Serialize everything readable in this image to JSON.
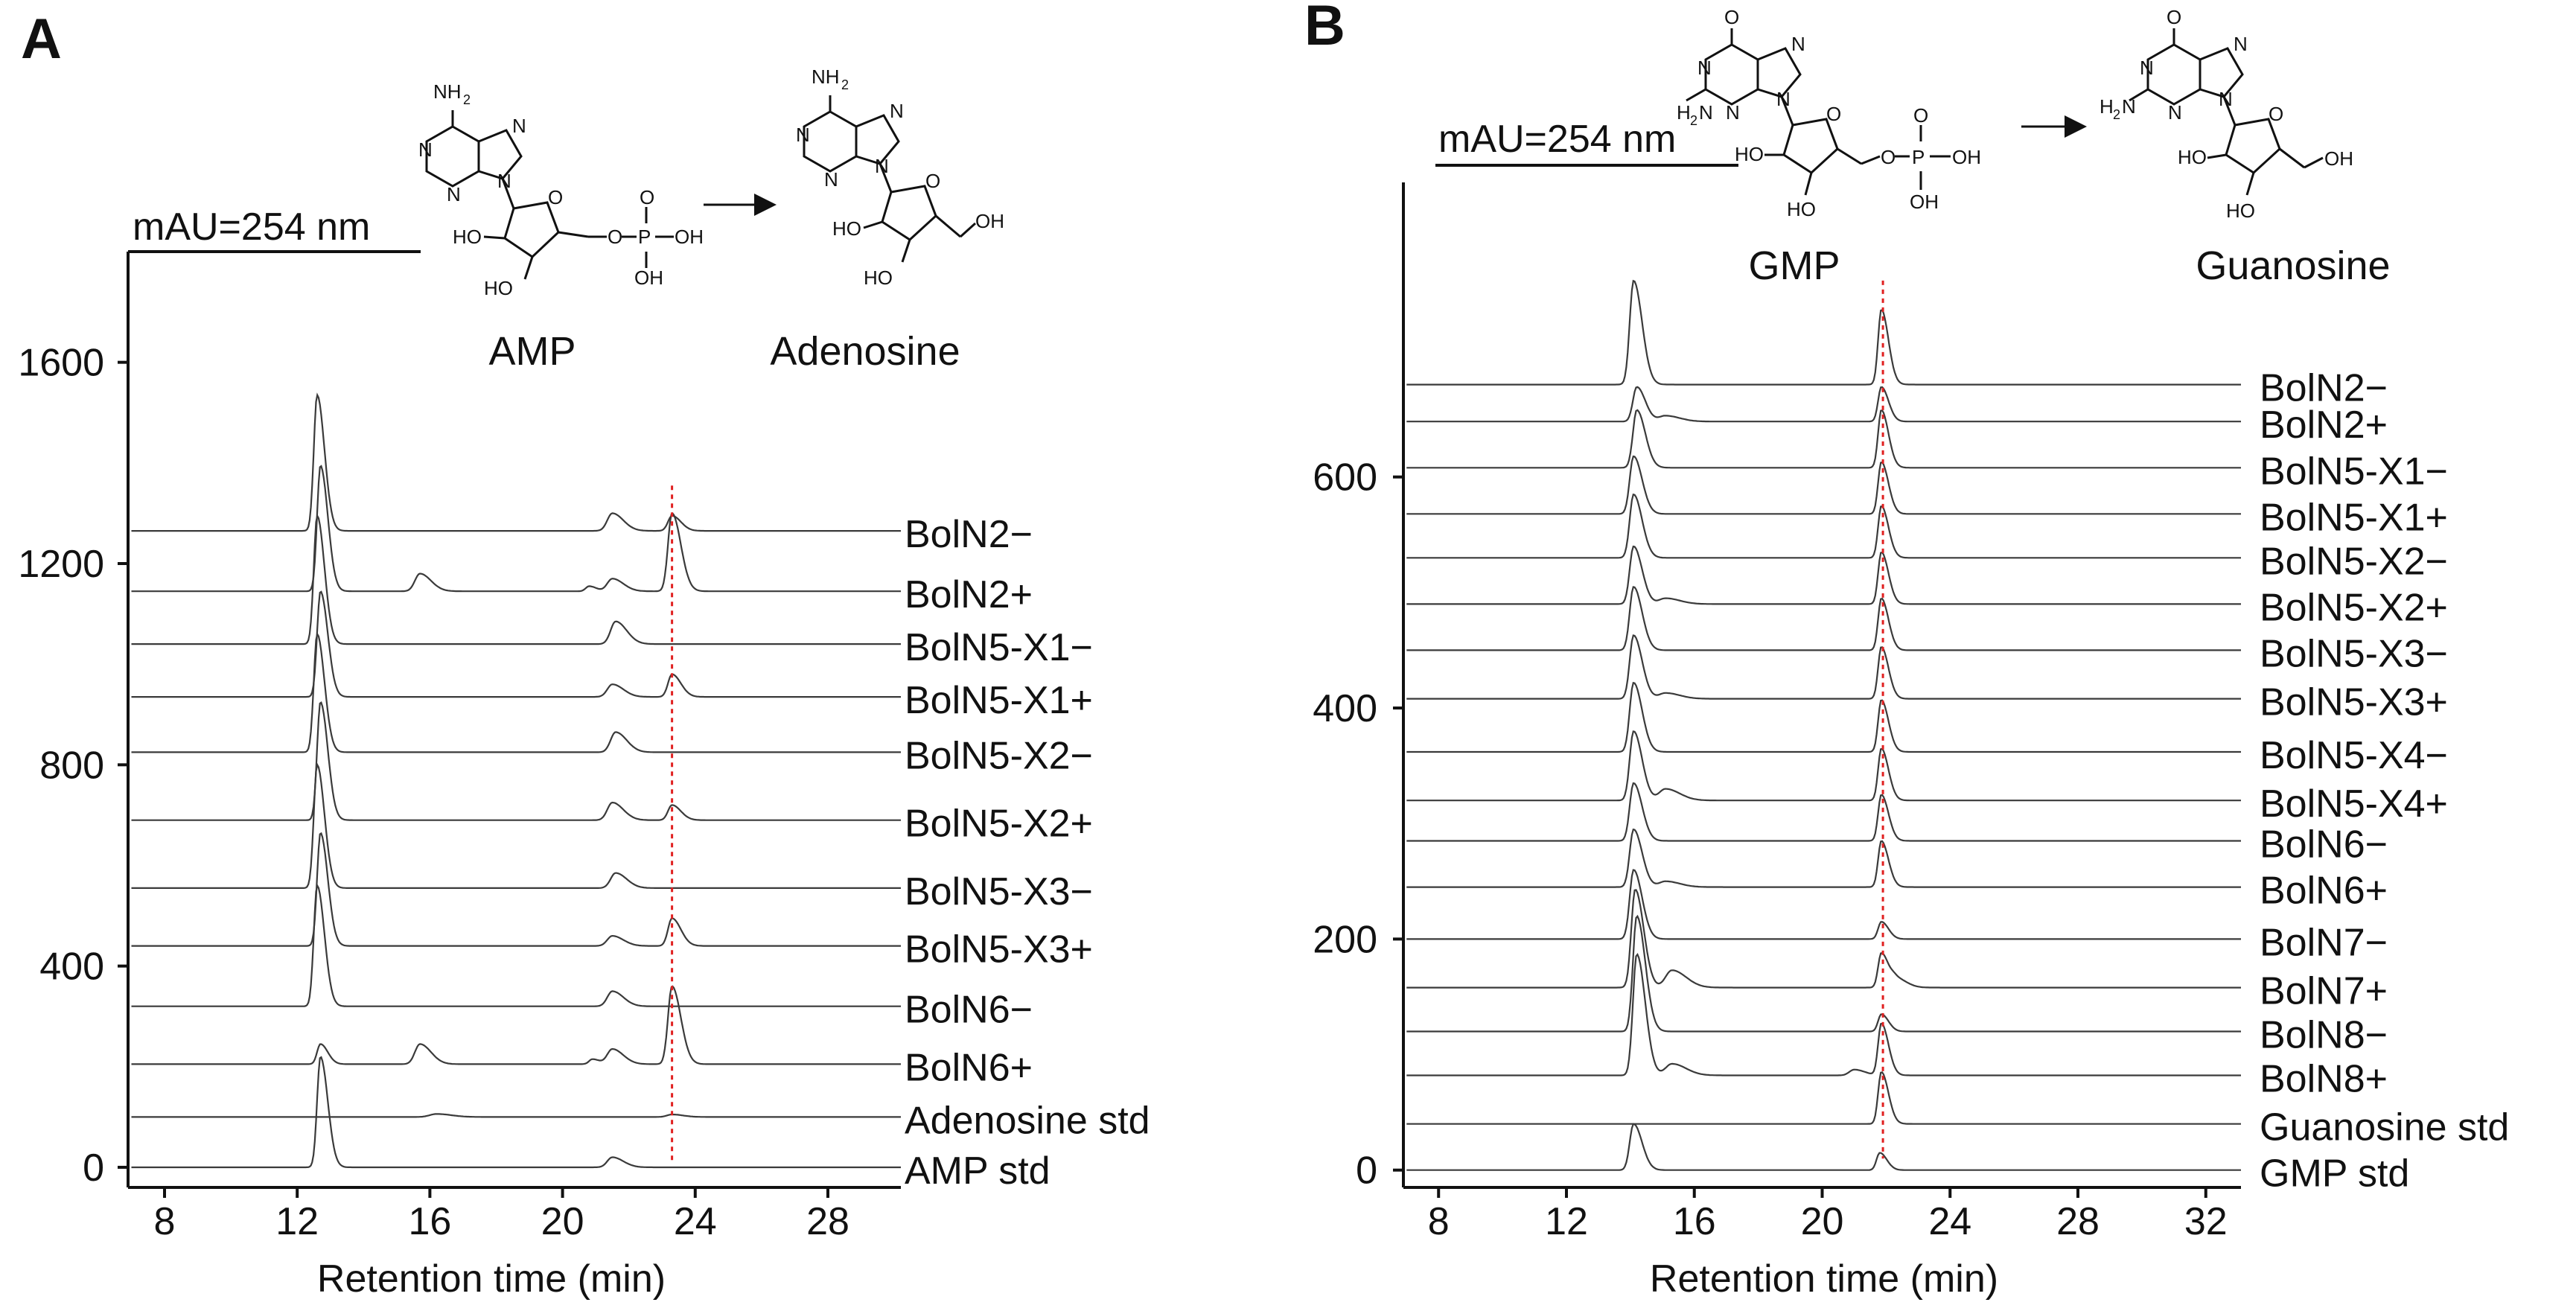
{
  "colors": {
    "trace": "#3a3a3a",
    "axis": "#111111",
    "marker_line": "#e02020"
  },
  "panels": [
    {
      "letter": "A",
      "unit_label": "mAU=254 nm",
      "reaction": {
        "substrate": "AMP",
        "product": "Adenosine",
        "substrate_structure": {
          "NH2": "NH",
          "sub": "2",
          "N": "N",
          "O": "O",
          "P": "P",
          "OH": "OH",
          "HO": "HO"
        },
        "product_structure": {
          "NH2": "NH",
          "sub": "2",
          "N": "N",
          "O": "O",
          "OH": "OH",
          "HO": "HO"
        }
      },
      "marker_line_x": 23.3
    },
    {
      "letter": "B",
      "unit_label": "mAU=254 nm",
      "reaction": {
        "substrate": "GMP",
        "product": "Guanosine",
        "substrate_structure": {
          "H2N": "H",
          "sub": "2",
          "N_after": "N",
          "N": "N",
          "O": "O",
          "P": "P",
          "OH": "OH",
          "HO": "HO"
        },
        "product_structure": {
          "H2N": "H",
          "sub": "2",
          "N_after": "N",
          "N": "N",
          "O": "O",
          "OH": "OH",
          "HO": "HO"
        }
      },
      "marker_line_x": 21.9
    }
  ],
  "chart_data": [
    {
      "type": "line",
      "panel": "A",
      "xlabel": "Retention time (min)",
      "ylabel": "",
      "x_ticks": [
        8,
        12,
        16,
        20,
        24,
        28
      ],
      "y_ticks": [
        0,
        400,
        800,
        1200,
        1600
      ],
      "xlim": [
        6.9,
        30.2
      ],
      "ylim": [
        -40,
        1820
      ],
      "grid": false,
      "legend": "none",
      "series": [
        {
          "name": "BolN2−",
          "baseline": 1265,
          "peaks": [
            [
              12.6,
              270,
              0.1
            ],
            [
              21.5,
              35,
              0.15
            ],
            [
              23.3,
              30,
              0.12
            ]
          ]
        },
        {
          "name": "BolN2+",
          "baseline": 1145,
          "peaks": [
            [
              12.7,
              250,
              0.1
            ],
            [
              15.7,
              35,
              0.15
            ],
            [
              20.8,
              10,
              0.1
            ],
            [
              21.5,
              25,
              0.15
            ],
            [
              23.3,
              155,
              0.12
            ]
          ]
        },
        {
          "name": "BolN5-X1−",
          "baseline": 1040,
          "peaks": [
            [
              12.6,
              255,
              0.1
            ],
            [
              21.6,
              45,
              0.15
            ]
          ]
        },
        {
          "name": "BolN5-X1+",
          "baseline": 935,
          "peaks": [
            [
              12.7,
              210,
              0.1
            ],
            [
              21.5,
              25,
              0.15
            ],
            [
              23.3,
              45,
              0.12
            ]
          ]
        },
        {
          "name": "BolN5-X2−",
          "baseline": 825,
          "peaks": [
            [
              12.6,
              235,
              0.1
            ],
            [
              21.6,
              40,
              0.15
            ]
          ]
        },
        {
          "name": "BolN5-X2+",
          "baseline": 690,
          "peaks": [
            [
              12.7,
              235,
              0.1
            ],
            [
              21.5,
              35,
              0.15
            ],
            [
              23.3,
              30,
              0.12
            ]
          ]
        },
        {
          "name": "BolN5-X3−",
          "baseline": 555,
          "peaks": [
            [
              12.6,
              245,
              0.1
            ],
            [
              21.6,
              30,
              0.15
            ]
          ]
        },
        {
          "name": "BolN5-X3+",
          "baseline": 440,
          "peaks": [
            [
              12.7,
              225,
              0.1
            ],
            [
              21.5,
              20,
              0.15
            ],
            [
              23.3,
              55,
              0.12
            ]
          ]
        },
        {
          "name": "BolN6−",
          "baseline": 320,
          "peaks": [
            [
              12.6,
              240,
              0.1
            ],
            [
              21.5,
              30,
              0.15
            ]
          ]
        },
        {
          "name": "BolN6+",
          "baseline": 205,
          "peaks": [
            [
              12.7,
              40,
              0.1
            ],
            [
              15.7,
              40,
              0.15
            ],
            [
              20.9,
              10,
              0.1
            ],
            [
              21.5,
              30,
              0.15
            ],
            [
              23.3,
              155,
              0.12
            ]
          ]
        },
        {
          "name": "Adenosine std",
          "baseline": 100,
          "peaks": [
            [
              16.2,
              6,
              0.2
            ],
            [
              23.3,
              5,
              0.15
            ]
          ]
        },
        {
          "name": "AMP std",
          "baseline": 0,
          "peaks": [
            [
              12.7,
              220,
              0.1
            ],
            [
              21.5,
              20,
              0.15
            ]
          ]
        }
      ]
    },
    {
      "type": "line",
      "panel": "B",
      "xlabel": "Retention time (min)",
      "ylabel": "",
      "x_ticks": [
        8,
        12,
        16,
        20,
        24,
        28,
        32
      ],
      "y_ticks": [
        0,
        200,
        400,
        600
      ],
      "xlim": [
        6.9,
        33.1
      ],
      "ylim": [
        -15,
        855
      ],
      "grid": false,
      "legend": "none",
      "series": [
        {
          "name": "BolN2−",
          "baseline": 680,
          "peaks": [
            [
              14.1,
              90,
              0.12
            ],
            [
              21.85,
              65,
              0.1
            ]
          ]
        },
        {
          "name": "BolN2+",
          "baseline": 648,
          "peaks": [
            [
              14.2,
              30,
              0.12
            ],
            [
              15.1,
              5,
              0.2
            ],
            [
              21.85,
              30,
              0.1
            ]
          ]
        },
        {
          "name": "BolN5-X1−",
          "baseline": 608,
          "peaks": [
            [
              14.2,
              50,
              0.12
            ],
            [
              21.85,
              50,
              0.1
            ]
          ]
        },
        {
          "name": "BolN5-X1+",
          "baseline": 568,
          "peaks": [
            [
              14.1,
              50,
              0.12
            ],
            [
              21.85,
              45,
              0.1
            ]
          ]
        },
        {
          "name": "BolN5-X2−",
          "baseline": 530,
          "peaks": [
            [
              14.1,
              55,
              0.12
            ],
            [
              21.85,
              45,
              0.1
            ]
          ]
        },
        {
          "name": "BolN5-X2+",
          "baseline": 490,
          "peaks": [
            [
              14.1,
              50,
              0.12
            ],
            [
              15.1,
              5,
              0.2
            ],
            [
              21.85,
              45,
              0.1
            ]
          ]
        },
        {
          "name": "BolN5-X3−",
          "baseline": 450,
          "peaks": [
            [
              14.1,
              55,
              0.12
            ],
            [
              21.85,
              45,
              0.1
            ]
          ]
        },
        {
          "name": "BolN5-X3+",
          "baseline": 408,
          "peaks": [
            [
              14.1,
              55,
              0.12
            ],
            [
              15.1,
              5,
              0.2
            ],
            [
              21.85,
              45,
              0.1
            ]
          ]
        },
        {
          "name": "BolN5-X4−",
          "baseline": 362,
          "peaks": [
            [
              14.1,
              60,
              0.12
            ],
            [
              21.85,
              45,
              0.1
            ]
          ]
        },
        {
          "name": "BolN5-X4+",
          "baseline": 320,
          "peaks": [
            [
              14.1,
              60,
              0.12
            ],
            [
              15.1,
              10,
              0.2
            ],
            [
              21.85,
              45,
              0.1
            ]
          ]
        },
        {
          "name": "BolN6−",
          "baseline": 285,
          "peaks": [
            [
              14.1,
              50,
              0.12
            ],
            [
              21.85,
              40,
              0.1
            ]
          ]
        },
        {
          "name": "BolN6+",
          "baseline": 245,
          "peaks": [
            [
              14.1,
              50,
              0.12
            ],
            [
              15.1,
              5,
              0.2
            ],
            [
              21.85,
              40,
              0.1
            ]
          ]
        },
        {
          "name": "BolN7−",
          "baseline": 200,
          "peaks": [
            [
              14.1,
              60,
              0.12
            ],
            [
              21.85,
              15,
              0.1
            ]
          ]
        },
        {
          "name": "BolN7+",
          "baseline": 158,
          "peaks": [
            [
              14.15,
              85,
              0.12
            ],
            [
              15.3,
              15,
              0.2
            ],
            [
              21.85,
              30,
              0.1
            ],
            [
              22.3,
              8,
              0.15
            ]
          ]
        },
        {
          "name": "BolN8−",
          "baseline": 120,
          "peaks": [
            [
              14.2,
              100,
              0.12
            ],
            [
              21.85,
              15,
              0.1
            ]
          ]
        },
        {
          "name": "BolN8+",
          "baseline": 82,
          "peaks": [
            [
              14.2,
              105,
              0.12
            ],
            [
              15.3,
              10,
              0.2
            ],
            [
              21.0,
              5,
              0.15
            ],
            [
              21.85,
              45,
              0.1
            ]
          ]
        },
        {
          "name": "Guanosine std",
          "baseline": 40,
          "peaks": [
            [
              21.85,
              45,
              0.1
            ]
          ]
        },
        {
          "name": "GMP std",
          "baseline": 0,
          "peaks": [
            [
              14.1,
              40,
              0.12
            ],
            [
              21.8,
              15,
              0.1
            ]
          ]
        }
      ]
    }
  ]
}
